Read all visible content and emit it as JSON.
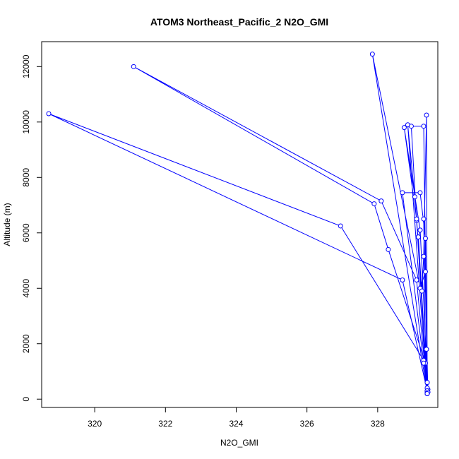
{
  "chart_data": {
    "type": "line",
    "title": "ATOM3 Northeast_Pacific_2 N2O_GMI",
    "xlabel": "N2O_GMI",
    "ylabel": "Altitude (m)",
    "xlim": [
      318.5,
      329.7
    ],
    "ylim": [
      -300,
      12900
    ],
    "xticks": [
      320,
      322,
      324,
      326,
      328
    ],
    "yticks": [
      0,
      2000,
      4000,
      6000,
      8000,
      10000,
      12000
    ],
    "grid": false,
    "legend": "none",
    "series_color": "#0000ff",
    "marker": "open-circle",
    "series": [
      {
        "x": [
          329.4,
          329.35,
          328.3,
          327.9,
          321.1,
          328.1,
          329.1,
          329.4,
          328.7,
          318.7,
          326.95,
          329.3,
          329.42,
          329.4,
          328.85,
          329.05,
          329.2,
          329.42,
          329.4,
          329.35,
          329.2,
          328.7,
          329.4,
          329.4,
          329.15,
          329.4,
          329.3,
          328.95,
          329.1,
          329.4,
          329.35,
          329.2,
          327.85,
          329.4,
          329.4,
          329.38,
          329.3,
          329.25,
          329.1,
          328.75,
          329.2,
          329.15,
          329.4,
          329.35,
          329.3,
          329.42,
          329.4,
          329.3,
          329.38,
          329.4
        ],
        "y": [
          600,
          1300,
          5400,
          7050,
          12000,
          7150,
          4300,
          300,
          4300,
          10300,
          6250,
          1400,
          250,
          200,
          9900,
          7300,
          6100,
          350,
          300,
          5800,
          7450,
          7450,
          300,
          400,
          5850,
          200,
          9850,
          9850,
          6450,
          300,
          4600,
          4000,
          12450,
          250,
          200,
          10250,
          5150,
          3900,
          6500,
          9800,
          6100,
          5850,
          300,
          1800,
          6500,
          250,
          600,
          1300,
          1800,
          200
        ]
      }
    ]
  }
}
